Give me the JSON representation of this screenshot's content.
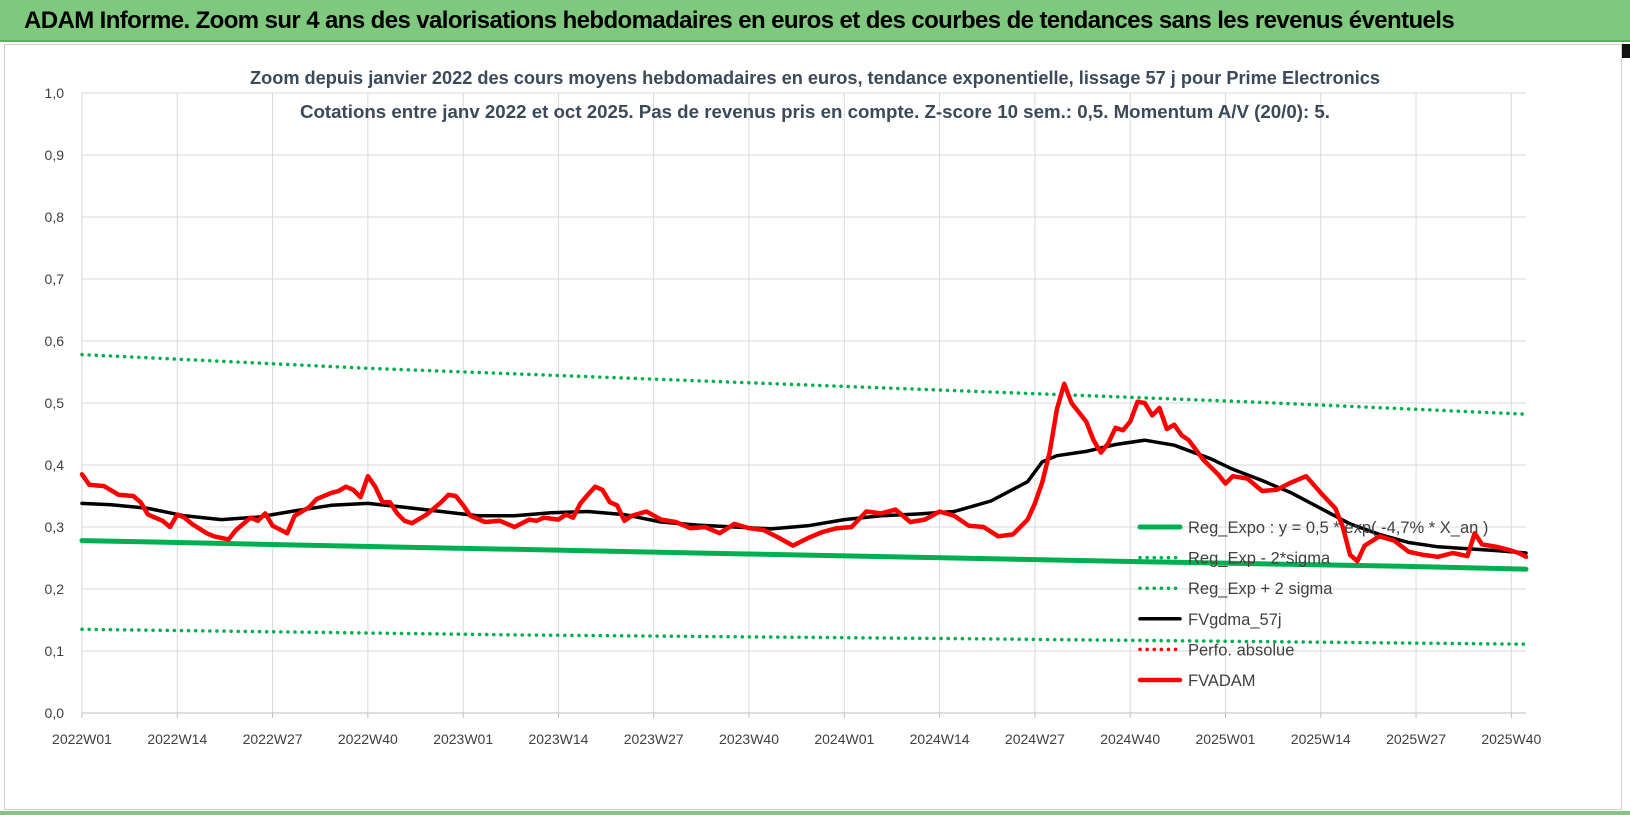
{
  "banner": {
    "title": "ADAM Informe. Zoom sur 4 ans des valorisations hebdomadaires en euros et des courbes de tendances sans les revenus éventuels"
  },
  "colors": {
    "banner_bg": "#7ec97e",
    "green": "#00b050",
    "red": "#ff0000",
    "black": "#000000",
    "grid": "#d9d9d9",
    "text": "#404040",
    "title_text": "#3a4a5a"
  },
  "chart_data": {
    "type": "line",
    "title": "Zoom depuis janvier 2022 des cours moyens hebdomadaires en euros, tendance exponentielle, lissage 57 j pour Prime Electronics",
    "subtitle": "Cotations entre janv 2022 et oct 2025. Pas de revenus pris en compte. Z-score 10 sem.: 0,5. Momentum A/V (20/0): 5.",
    "xlabel": "",
    "ylabel": "",
    "ylim": [
      0,
      1
    ],
    "y_ticks": [
      "0,0",
      "0,1",
      "0,2",
      "0,3",
      "0,4",
      "0,5",
      "0,6",
      "0,7",
      "0,8",
      "0,9",
      "1,0"
    ],
    "x_range_weeks": [
      1,
      198
    ],
    "x_ticks": [
      {
        "label": "2022W01",
        "week": 1
      },
      {
        "label": "2022W14",
        "week": 14
      },
      {
        "label": "2022W27",
        "week": 27
      },
      {
        "label": "2022W40",
        "week": 40
      },
      {
        "label": "2023W01",
        "week": 53
      },
      {
        "label": "2023W14",
        "week": 66
      },
      {
        "label": "2023W27",
        "week": 79
      },
      {
        "label": "2023W40",
        "week": 92
      },
      {
        "label": "2024W01",
        "week": 105
      },
      {
        "label": "2024W14",
        "week": 118
      },
      {
        "label": "2024W27",
        "week": 131
      },
      {
        "label": "2024W40",
        "week": 144
      },
      {
        "label": "2025W01",
        "week": 157
      },
      {
        "label": "2025W14",
        "week": 170
      },
      {
        "label": "2025W27",
        "week": 183
      },
      {
        "label": "2025W40",
        "week": 196
      }
    ],
    "grid": true,
    "legend_position": "bottom-right",
    "series": [
      {
        "name": "Reg_Expo : y = 0,5 * exp( -4,7% * X_an )",
        "style": "solid-thick",
        "color": "#00b050",
        "points": [
          [
            1,
            0.278
          ],
          [
            10,
            0.276
          ],
          [
            30,
            0.271
          ],
          [
            60,
            0.264
          ],
          [
            90,
            0.257
          ],
          [
            120,
            0.25
          ],
          [
            150,
            0.243
          ],
          [
            180,
            0.237
          ],
          [
            198,
            0.232
          ]
        ]
      },
      {
        "name": "Reg_Exp - 2*sigma",
        "style": "dotted",
        "color": "#00b050",
        "points": [
          [
            1,
            0.135
          ],
          [
            60,
            0.126
          ],
          [
            120,
            0.12
          ],
          [
            198,
            0.111
          ]
        ]
      },
      {
        "name": "Reg_Exp + 2 sigma",
        "style": "dotted",
        "color": "#00b050",
        "points": [
          [
            1,
            0.578
          ],
          [
            40,
            0.556
          ],
          [
            80,
            0.538
          ],
          [
            120,
            0.52
          ],
          [
            160,
            0.502
          ],
          [
            198,
            0.482
          ]
        ]
      },
      {
        "name": "FVgdma_57j",
        "style": "solid",
        "color": "#000000",
        "points": [
          [
            1,
            0.338
          ],
          [
            5,
            0.336
          ],
          [
            10,
            0.33
          ],
          [
            15,
            0.318
          ],
          [
            20,
            0.312
          ],
          [
            25,
            0.316
          ],
          [
            30,
            0.326
          ],
          [
            35,
            0.335
          ],
          [
            40,
            0.338
          ],
          [
            45,
            0.332
          ],
          [
            50,
            0.325
          ],
          [
            55,
            0.318
          ],
          [
            60,
            0.318
          ],
          [
            65,
            0.323
          ],
          [
            70,
            0.325
          ],
          [
            75,
            0.32
          ],
          [
            80,
            0.308
          ],
          [
            85,
            0.303
          ],
          [
            90,
            0.3
          ],
          [
            95,
            0.297
          ],
          [
            100,
            0.302
          ],
          [
            105,
            0.312
          ],
          [
            110,
            0.318
          ],
          [
            115,
            0.321
          ],
          [
            120,
            0.325
          ],
          [
            125,
            0.342
          ],
          [
            130,
            0.373
          ],
          [
            132,
            0.405
          ],
          [
            134,
            0.415
          ],
          [
            138,
            0.422
          ],
          [
            142,
            0.433
          ],
          [
            146,
            0.44
          ],
          [
            150,
            0.432
          ],
          [
            155,
            0.41
          ],
          [
            158,
            0.393
          ],
          [
            162,
            0.375
          ],
          [
            166,
            0.355
          ],
          [
            170,
            0.33
          ],
          [
            174,
            0.305
          ],
          [
            178,
            0.288
          ],
          [
            182,
            0.275
          ],
          [
            186,
            0.268
          ],
          [
            190,
            0.265
          ],
          [
            194,
            0.262
          ],
          [
            198,
            0.258
          ]
        ]
      },
      {
        "name": "Perfo. absolue",
        "style": "dotted",
        "color": "#ff0000",
        "points": []
      },
      {
        "name": "FVADAM",
        "style": "solid-thick",
        "color": "#ff0000",
        "points": [
          [
            1,
            0.385
          ],
          [
            2,
            0.368
          ],
          [
            4,
            0.366
          ],
          [
            6,
            0.352
          ],
          [
            8,
            0.35
          ],
          [
            9,
            0.34
          ],
          [
            10,
            0.32
          ],
          [
            12,
            0.31
          ],
          [
            13,
            0.3
          ],
          [
            14,
            0.32
          ],
          [
            15,
            0.315
          ],
          [
            16,
            0.305
          ],
          [
            18,
            0.29
          ],
          [
            19,
            0.285
          ],
          [
            21,
            0.28
          ],
          [
            22,
            0.295
          ],
          [
            24,
            0.315
          ],
          [
            25,
            0.31
          ],
          [
            26,
            0.322
          ],
          [
            27,
            0.302
          ],
          [
            29,
            0.29
          ],
          [
            30,
            0.318
          ],
          [
            32,
            0.332
          ],
          [
            33,
            0.345
          ],
          [
            35,
            0.355
          ],
          [
            36,
            0.358
          ],
          [
            37,
            0.365
          ],
          [
            38,
            0.36
          ],
          [
            39,
            0.348
          ],
          [
            40,
            0.382
          ],
          [
            41,
            0.365
          ],
          [
            42,
            0.34
          ],
          [
            43,
            0.34
          ],
          [
            44,
            0.322
          ],
          [
            45,
            0.31
          ],
          [
            46,
            0.306
          ],
          [
            48,
            0.32
          ],
          [
            50,
            0.34
          ],
          [
            51,
            0.352
          ],
          [
            52,
            0.35
          ],
          [
            53,
            0.335
          ],
          [
            54,
            0.318
          ],
          [
            56,
            0.308
          ],
          [
            58,
            0.31
          ],
          [
            60,
            0.3
          ],
          [
            62,
            0.312
          ],
          [
            63,
            0.31
          ],
          [
            64,
            0.315
          ],
          [
            66,
            0.312
          ],
          [
            67,
            0.32
          ],
          [
            68,
            0.315
          ],
          [
            69,
            0.338
          ],
          [
            70,
            0.352
          ],
          [
            71,
            0.365
          ],
          [
            72,
            0.36
          ],
          [
            73,
            0.34
          ],
          [
            74,
            0.335
          ],
          [
            75,
            0.31
          ],
          [
            76,
            0.318
          ],
          [
            78,
            0.325
          ],
          [
            80,
            0.312
          ],
          [
            82,
            0.308
          ],
          [
            84,
            0.298
          ],
          [
            86,
            0.3
          ],
          [
            88,
            0.29
          ],
          [
            90,
            0.305
          ],
          [
            92,
            0.298
          ],
          [
            94,
            0.295
          ],
          [
            96,
            0.283
          ],
          [
            98,
            0.27
          ],
          [
            100,
            0.282
          ],
          [
            102,
            0.292
          ],
          [
            104,
            0.298
          ],
          [
            106,
            0.3
          ],
          [
            108,
            0.325
          ],
          [
            110,
            0.322
          ],
          [
            112,
            0.328
          ],
          [
            114,
            0.308
          ],
          [
            116,
            0.312
          ],
          [
            118,
            0.325
          ],
          [
            120,
            0.318
          ],
          [
            122,
            0.302
          ],
          [
            124,
            0.3
          ],
          [
            126,
            0.285
          ],
          [
            128,
            0.288
          ],
          [
            130,
            0.312
          ],
          [
            131,
            0.338
          ],
          [
            132,
            0.372
          ],
          [
            133,
            0.42
          ],
          [
            134,
            0.49
          ],
          [
            135,
            0.531
          ],
          [
            136,
            0.5
          ],
          [
            138,
            0.47
          ],
          [
            139,
            0.44
          ],
          [
            140,
            0.42
          ],
          [
            141,
            0.435
          ],
          [
            142,
            0.46
          ],
          [
            143,
            0.456
          ],
          [
            144,
            0.47
          ],
          [
            145,
            0.502
          ],
          [
            146,
            0.5
          ],
          [
            147,
            0.48
          ],
          [
            148,
            0.492
          ],
          [
            149,
            0.458
          ],
          [
            150,
            0.465
          ],
          [
            151,
            0.448
          ],
          [
            152,
            0.44
          ],
          [
            154,
            0.408
          ],
          [
            156,
            0.385
          ],
          [
            157,
            0.37
          ],
          [
            158,
            0.382
          ],
          [
            160,
            0.378
          ],
          [
            162,
            0.358
          ],
          [
            164,
            0.36
          ],
          [
            166,
            0.372
          ],
          [
            168,
            0.382
          ],
          [
            170,
            0.355
          ],
          [
            172,
            0.33
          ],
          [
            173,
            0.3
          ],
          [
            174,
            0.255
          ],
          [
            175,
            0.245
          ],
          [
            176,
            0.27
          ],
          [
            178,
            0.285
          ],
          [
            180,
            0.278
          ],
          [
            182,
            0.26
          ],
          [
            184,
            0.255
          ],
          [
            186,
            0.252
          ],
          [
            188,
            0.258
          ],
          [
            190,
            0.253
          ],
          [
            191,
            0.29
          ],
          [
            192,
            0.272
          ],
          [
            194,
            0.268
          ],
          [
            196,
            0.262
          ],
          [
            197,
            0.258
          ],
          [
            198,
            0.252
          ]
        ]
      }
    ]
  }
}
